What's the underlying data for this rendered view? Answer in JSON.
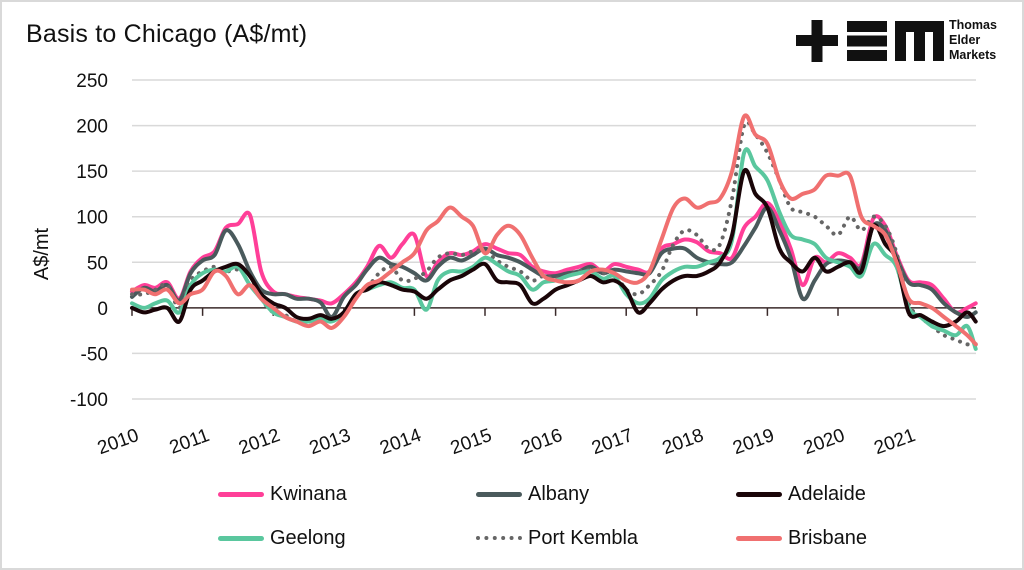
{
  "title": "Basis to Chicago (A$/mt)",
  "logo": {
    "icon": "tem-logo-icon",
    "lines": [
      "Thomas",
      "Elder",
      "Markets"
    ]
  },
  "chart_data": {
    "type": "line",
    "title": "Basis to Chicago (A$/mt)",
    "xlabel": "",
    "ylabel": "A$/mt",
    "ylim": [
      -100,
      250
    ],
    "yticks": [
      250,
      200,
      150,
      100,
      50,
      0,
      -50,
      -100
    ],
    "xlim": [
      2010,
      2021.95
    ],
    "xticks": [
      "2010",
      "2011",
      "2012",
      "2013",
      "2014",
      "2015",
      "2016",
      "2017",
      "2018",
      "2019",
      "2020",
      "2021"
    ],
    "grid": true,
    "legend_position": "bottom",
    "x": [
      2010.0,
      2010.17,
      2010.33,
      2010.5,
      2010.67,
      2010.83,
      2011.0,
      2011.17,
      2011.33,
      2011.5,
      2011.67,
      2011.83,
      2012.0,
      2012.17,
      2012.33,
      2012.5,
      2012.67,
      2012.83,
      2013.0,
      2013.17,
      2013.33,
      2013.5,
      2013.67,
      2013.83,
      2014.0,
      2014.17,
      2014.33,
      2014.5,
      2014.67,
      2014.83,
      2015.0,
      2015.17,
      2015.33,
      2015.5,
      2015.67,
      2015.83,
      2016.0,
      2016.17,
      2016.33,
      2016.5,
      2016.67,
      2016.83,
      2017.0,
      2017.17,
      2017.33,
      2017.5,
      2017.67,
      2017.83,
      2018.0,
      2018.17,
      2018.33,
      2018.5,
      2018.67,
      2018.83,
      2019.0,
      2019.17,
      2019.33,
      2019.5,
      2019.67,
      2019.83,
      2020.0,
      2020.17,
      2020.33,
      2020.5,
      2020.67,
      2020.83,
      2021.0,
      2021.17,
      2021.33,
      2021.5,
      2021.67,
      2021.83,
      2021.95
    ],
    "series": [
      {
        "name": "Kwinana",
        "color": "#ff3f98",
        "style": "solid",
        "values": [
          18,
          25,
          22,
          28,
          10,
          40,
          55,
          62,
          88,
          92,
          102,
          40,
          18,
          15,
          12,
          10,
          8,
          5,
          15,
          28,
          45,
          68,
          55,
          70,
          80,
          35,
          50,
          60,
          58,
          62,
          70,
          65,
          60,
          58,
          45,
          40,
          38,
          42,
          45,
          48,
          40,
          48,
          45,
          42,
          40,
          65,
          70,
          75,
          72,
          62,
          60,
          55,
          88,
          100,
          115,
          95,
          65,
          25,
          55,
          50,
          60,
          55,
          48,
          98,
          90,
          58,
          30,
          28,
          25,
          10,
          -5,
          0,
          5
        ]
      },
      {
        "name": "Albany",
        "color": "#4a5a5c",
        "style": "solid",
        "values": [
          12,
          22,
          18,
          25,
          8,
          38,
          52,
          58,
          85,
          70,
          40,
          20,
          15,
          15,
          10,
          10,
          6,
          -10,
          12,
          25,
          42,
          55,
          48,
          45,
          38,
          30,
          45,
          55,
          52,
          58,
          65,
          58,
          55,
          50,
          42,
          35,
          35,
          38,
          40,
          45,
          38,
          42,
          40,
          38,
          38,
          60,
          65,
          65,
          55,
          50,
          48,
          50,
          68,
          88,
          110,
          85,
          55,
          10,
          30,
          48,
          52,
          50,
          45,
          90,
          85,
          55,
          28,
          25,
          20,
          5,
          -5,
          -10,
          -5
        ]
      },
      {
        "name": "Adelaide",
        "color": "#1a0508",
        "style": "solid",
        "values": [
          0,
          -5,
          -2,
          0,
          -15,
          20,
          30,
          40,
          45,
          48,
          35,
          15,
          5,
          0,
          -10,
          -12,
          -8,
          -12,
          -5,
          15,
          20,
          28,
          25,
          20,
          18,
          10,
          20,
          30,
          35,
          42,
          48,
          30,
          28,
          25,
          5,
          10,
          20,
          25,
          30,
          35,
          28,
          30,
          20,
          -5,
          5,
          20,
          30,
          35,
          35,
          40,
          50,
          80,
          150,
          125,
          110,
          65,
          50,
          40,
          55,
          40,
          45,
          50,
          40,
          90,
          70,
          52,
          -5,
          -8,
          -15,
          -20,
          -15,
          -5,
          -15
        ]
      },
      {
        "name": "Geelong",
        "color": "#5ac79e",
        "style": "solid",
        "values": [
          5,
          0,
          5,
          8,
          -5,
          25,
          38,
          42,
          40,
          45,
          25,
          10,
          -5,
          -10,
          -15,
          -15,
          -12,
          -15,
          -5,
          15,
          20,
          25,
          28,
          22,
          20,
          -2,
          30,
          40,
          40,
          45,
          55,
          48,
          40,
          35,
          20,
          28,
          30,
          35,
          38,
          40,
          32,
          35,
          15,
          5,
          10,
          30,
          40,
          45,
          45,
          50,
          55,
          75,
          170,
          155,
          140,
          105,
          80,
          75,
          70,
          55,
          50,
          45,
          35,
          70,
          58,
          45,
          0,
          -10,
          -20,
          -25,
          -30,
          -20,
          -45
        ]
      },
      {
        "name": "Port Kembla",
        "color": "#666666",
        "style": "dotted",
        "values": [
          15,
          15,
          20,
          25,
          0,
          30,
          40,
          45,
          40,
          42,
          35,
          10,
          -5,
          -8,
          -15,
          -15,
          -10,
          -12,
          -5,
          15,
          22,
          38,
          45,
          30,
          32,
          40,
          55,
          60,
          58,
          62,
          62,
          52,
          45,
          40,
          30,
          35,
          32,
          35,
          40,
          42,
          38,
          38,
          20,
          15,
          25,
          40,
          70,
          85,
          80,
          65,
          70,
          120,
          200,
          190,
          170,
          140,
          110,
          105,
          100,
          90,
          80,
          100,
          85,
          100,
          90,
          60,
          5,
          -10,
          -20,
          -30,
          -35,
          -40,
          -40
        ]
      },
      {
        "name": "Brisbane",
        "color": "#f07070",
        "style": "solid",
        "values": [
          20,
          20,
          15,
          20,
          5,
          15,
          20,
          40,
          35,
          15,
          25,
          10,
          0,
          -10,
          -15,
          -20,
          -15,
          -22,
          -10,
          10,
          25,
          30,
          40,
          50,
          60,
          85,
          95,
          110,
          100,
          90,
          60,
          80,
          90,
          80,
          55,
          35,
          30,
          28,
          30,
          40,
          42,
          38,
          30,
          28,
          40,
          75,
          110,
          120,
          110,
          115,
          120,
          150,
          210,
          190,
          180,
          140,
          120,
          125,
          130,
          145,
          145,
          145,
          100,
          90,
          80,
          50,
          10,
          5,
          0,
          -10,
          -20,
          -30,
          -40
        ]
      }
    ]
  },
  "legend": [
    {
      "label": "Kwinana"
    },
    {
      "label": "Albany"
    },
    {
      "label": "Adelaide"
    },
    {
      "label": "Geelong"
    },
    {
      "label": "Port Kembla"
    },
    {
      "label": "Brisbane"
    }
  ]
}
